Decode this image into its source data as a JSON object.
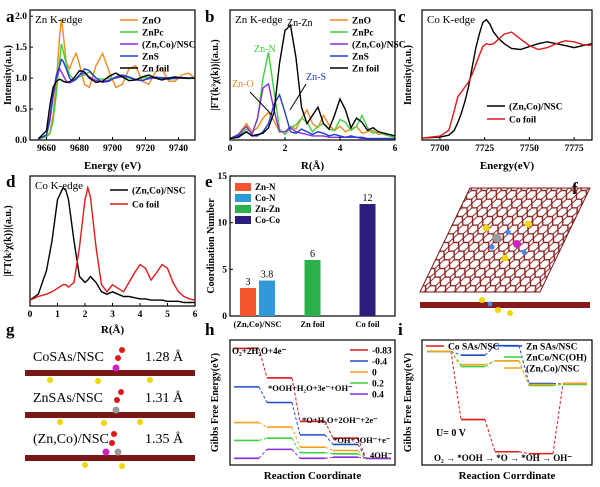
{
  "chart_data": [
    {
      "panel": "a",
      "type": "line",
      "title": "Zn K-edge",
      "xlabel": "Energy (eV)",
      "ylabel": "Intensity(a.u.)",
      "xlim": [
        9650,
        9750
      ],
      "ylim": [
        0,
        2.1
      ],
      "xticks": [
        "9660",
        "9680",
        "9700",
        "9720",
        "9740"
      ],
      "yticks": [
        "0.0",
        "0.5",
        "1.0",
        "1.5",
        "2.0"
      ],
      "x": [
        9655,
        9660,
        9662,
        9664,
        9666,
        9668,
        9669,
        9670,
        9672,
        9674,
        9676,
        9678,
        9680,
        9683,
        9686,
        9690,
        9694,
        9698,
        9702,
        9706,
        9710,
        9714,
        9718,
        9722,
        9726,
        9730,
        9734,
        9738,
        9742,
        9746,
        9750
      ],
      "series": [
        {
          "name": "ZnO",
          "color": "#f08a1e",
          "values": [
            0.02,
            0.05,
            0.12,
            0.4,
            0.95,
            1.7,
            1.95,
            1.75,
            1.25,
            1.15,
            1.3,
            1.4,
            1.22,
            0.9,
            0.85,
            1.2,
            1.4,
            1.1,
            0.85,
            0.9,
            1.15,
            1.2,
            0.95,
            0.9,
            1.1,
            1.15,
            0.95,
            0.95,
            1.05,
            1.08,
            1.0
          ]
        },
        {
          "name": "ZnPc",
          "color": "#3fd13f",
          "values": [
            0.02,
            0.05,
            0.1,
            0.3,
            0.75,
            1.3,
            1.55,
            1.45,
            1.22,
            1.05,
            1.0,
            1.0,
            1.02,
            1.05,
            1.1,
            1.0,
            0.98,
            1.0,
            1.0,
            1.02,
            1.0,
            0.98,
            1.0,
            1.02,
            1.0,
            0.98,
            1.0,
            1.02,
            1.0,
            0.99,
            1.0
          ]
        },
        {
          "name": "(Zn,Co)/NSC",
          "color": "#8a2be2",
          "values": [
            0.02,
            0.08,
            0.3,
            0.7,
            1.0,
            1.15,
            1.1,
            1.05,
            0.95,
            0.92,
            0.95,
            1.0,
            1.05,
            1.08,
            1.02,
            0.96,
            0.94,
            0.97,
            1.0,
            1.03,
            1.02,
            0.98,
            0.96,
            0.99,
            1.0,
            1.01,
            1.0,
            0.99,
            1.0,
            1.0,
            1.0
          ]
        },
        {
          "name": "ZnS",
          "color": "#1f3fc8",
          "values": [
            0.02,
            0.08,
            0.35,
            0.75,
            1.05,
            1.2,
            1.3,
            1.28,
            1.15,
            1.0,
            0.95,
            0.98,
            1.05,
            1.15,
            1.12,
            1.0,
            0.93,
            0.95,
            1.02,
            1.05,
            1.02,
            0.97,
            0.96,
            1.0,
            1.02,
            1.0,
            0.98,
            1.0,
            1.01,
            1.0,
            1.0
          ]
        },
        {
          "name": "Zn foil",
          "color": "#000000",
          "values": [
            0.02,
            0.15,
            0.55,
            0.85,
            0.95,
            0.98,
            0.97,
            0.95,
            0.93,
            0.94,
            0.98,
            1.05,
            1.12,
            1.1,
            1.0,
            0.93,
            0.95,
            1.03,
            1.08,
            1.02,
            0.96,
            0.97,
            1.02,
            1.05,
            1.0,
            0.97,
            1.0,
            1.02,
            1.0,
            1.0,
            1.0
          ]
        }
      ]
    },
    {
      "panel": "b",
      "type": "line",
      "title": "Zn K-edge",
      "xlabel": "R(Å)",
      "ylabel": "|FT(k³χ(k))|(a.u.)",
      "xlim": [
        0,
        6
      ],
      "ylim": [
        0,
        9.5
      ],
      "xticks": [
        "0",
        "2",
        "4",
        "6"
      ],
      "annotations": [
        "Zn-Zn",
        "Zn-N",
        "Zn-O",
        "Zn-S"
      ],
      "x": [
        0,
        0.3,
        0.6,
        0.8,
        1.0,
        1.2,
        1.4,
        1.6,
        1.8,
        2.0,
        2.2,
        2.4,
        2.6,
        2.8,
        3.0,
        3.2,
        3.4,
        3.6,
        3.8,
        4.0,
        4.2,
        4.4,
        4.6,
        4.8,
        5.0,
        5.2,
        5.4,
        5.6,
        5.8,
        6.0
      ],
      "series": [
        {
          "name": "ZnO",
          "color": "#f08a1e",
          "values": [
            0.1,
            0.4,
            1.2,
            0.6,
            0.9,
            1.6,
            2.0,
            1.4,
            0.6,
            0.6,
            1.0,
            0.8,
            1.6,
            2.2,
            1.2,
            0.9,
            1.8,
            1.1,
            0.7,
            1.0,
            0.6,
            0.8,
            1.0,
            0.5,
            0.6,
            0.7,
            0.4,
            0.5,
            0.3,
            0.2
          ]
        },
        {
          "name": "ZnPc",
          "color": "#3fd13f",
          "values": [
            0.1,
            0.3,
            0.8,
            0.5,
            1.5,
            4.5,
            6.4,
            3.6,
            0.8,
            0.4,
            0.9,
            1.1,
            1.6,
            1.3,
            0.6,
            1.0,
            1.2,
            0.8,
            0.7,
            1.5,
            1.3,
            0.7,
            1.0,
            1.8,
            0.9,
            0.5,
            0.6,
            0.4,
            0.3,
            0.2
          ]
        },
        {
          "name": "(Zn,Co)/NSC",
          "color": "#8a2be2",
          "values": [
            0.1,
            0.4,
            1.0,
            0.4,
            1.6,
            3.8,
            4.1,
            2.2,
            0.6,
            0.6,
            0.9,
            0.6,
            0.5,
            0.4,
            0.3,
            0.3,
            0.3,
            0.2,
            0.2,
            0.2,
            0.2,
            0.2,
            0.2,
            0.1,
            0.1,
            0.1,
            0.1,
            0.1,
            0.1,
            0.1
          ]
        },
        {
          "name": "ZnS",
          "color": "#1f3fc8",
          "values": [
            0.1,
            0.3,
            0.6,
            0.3,
            0.3,
            0.6,
            1.2,
            2.6,
            3.3,
            2.0,
            0.6,
            0.5,
            0.8,
            0.6,
            0.4,
            0.6,
            0.5,
            0.3,
            0.4,
            0.3,
            0.2,
            0.3,
            0.2,
            0.2,
            0.1,
            0.1,
            0.1,
            0.1,
            0.1,
            0.1
          ]
        },
        {
          "name": "Zn foil",
          "color": "#000000",
          "values": [
            0.1,
            0.2,
            0.6,
            0.3,
            0.4,
            0.5,
            0.9,
            2.0,
            5.6,
            8.0,
            8.4,
            6.0,
            2.4,
            1.2,
            1.8,
            2.4,
            1.2,
            0.8,
            1.8,
            3.0,
            2.2,
            0.9,
            1.6,
            1.3,
            0.7,
            0.9,
            0.6,
            0.5,
            0.4,
            0.3
          ]
        }
      ]
    },
    {
      "panel": "c",
      "type": "line",
      "title": "Co K-edge",
      "xlabel": "Energy(eV)",
      "ylabel": "Intensity(a.u.)",
      "xlim": [
        7690,
        7785
      ],
      "xticks": [
        "7700",
        "7725",
        "7750",
        "7775"
      ],
      "x": [
        7690,
        7700,
        7705,
        7708,
        7710,
        7712,
        7714,
        7716,
        7718,
        7720,
        7722,
        7724,
        7726,
        7728,
        7730,
        7733,
        7736,
        7740,
        7745,
        7750,
        7755,
        7760,
        7765,
        7770,
        7775,
        7780,
        7785
      ],
      "series": [
        {
          "name": "(Zn,Co)/NSC",
          "color": "#000000",
          "values": [
            0.02,
            0.03,
            0.05,
            0.1,
            0.18,
            0.28,
            0.4,
            0.55,
            0.75,
            0.95,
            1.1,
            1.22,
            1.25,
            1.2,
            1.12,
            1.05,
            1.0,
            0.95,
            0.94,
            0.97,
            1.0,
            1.02,
            1.0,
            0.98,
            0.96,
            0.98,
            1.0
          ]
        },
        {
          "name": "Co foil",
          "color": "#e0191b",
          "values": [
            0.02,
            0.04,
            0.1,
            0.3,
            0.45,
            0.5,
            0.55,
            0.6,
            0.68,
            0.78,
            0.88,
            0.97,
            1.0,
            0.99,
            1.0,
            1.05,
            1.1,
            1.12,
            1.05,
            0.98,
            0.94,
            0.96,
            1.0,
            1.03,
            1.02,
            0.99,
            0.98
          ]
        }
      ]
    },
    {
      "panel": "d",
      "type": "line",
      "title": "Co K-edge",
      "xlabel": "R(Å)",
      "ylabel": "|FT(k³χ(k))|(a.u.)",
      "xlim": [
        0,
        6
      ],
      "xticks": [
        "0",
        "1",
        "2",
        "3",
        "4",
        "5",
        "6"
      ],
      "x": [
        0,
        0.3,
        0.6,
        0.8,
        1.0,
        1.2,
        1.3,
        1.4,
        1.6,
        1.8,
        2.0,
        2.1,
        2.2,
        2.4,
        2.6,
        2.8,
        3.0,
        3.2,
        3.4,
        3.6,
        3.8,
        4.0,
        4.2,
        4.4,
        4.6,
        4.8,
        5.0,
        5.2,
        5.4,
        5.6,
        5.8,
        6.0
      ],
      "series": [
        {
          "name": "(Zn,Co)/NSC",
          "color": "#000000",
          "values": [
            0.05,
            0.1,
            0.3,
            0.55,
            0.9,
            1.0,
            0.98,
            0.9,
            0.55,
            0.25,
            0.2,
            0.22,
            0.25,
            0.2,
            0.12,
            0.1,
            0.12,
            0.1,
            0.08,
            0.08,
            0.07,
            0.06,
            0.06,
            0.05,
            0.05,
            0.05,
            0.04,
            0.04,
            0.04,
            0.03,
            0.03,
            0.03
          ]
        },
        {
          "name": "Co foil",
          "color": "#e0191b",
          "values": [
            0.05,
            0.08,
            0.1,
            0.12,
            0.15,
            0.18,
            0.18,
            0.16,
            0.2,
            0.5,
            0.9,
            1.0,
            0.92,
            0.5,
            0.18,
            0.12,
            0.18,
            0.15,
            0.12,
            0.2,
            0.28,
            0.35,
            0.32,
            0.22,
            0.28,
            0.35,
            0.32,
            0.2,
            0.12,
            0.08,
            0.06,
            0.05
          ]
        }
      ]
    },
    {
      "panel": "e",
      "type": "bar",
      "ylabel": "Coordination Number",
      "categories": [
        "(Zn,Co)/NSC",
        "Zn foil",
        "Co foil"
      ],
      "ylim": [
        0,
        15
      ],
      "yticks": [
        "0",
        "5",
        "10",
        "15"
      ],
      "legend": [
        "Zn-N",
        "Co-N",
        "Zn-Zn",
        "Co-Co"
      ],
      "bars": [
        {
          "category": "(Zn,Co)/NSC",
          "series": "Zn-N",
          "value": 3,
          "label": "3",
          "color": "#f2552b"
        },
        {
          "category": "(Zn,Co)/NSC",
          "series": "Co-N",
          "value": 3.8,
          "label": "3.8",
          "color": "#2f9ad8"
        },
        {
          "category": "Zn foil",
          "series": "Zn-Zn",
          "value": 6,
          "label": "6",
          "color": "#2bb14a"
        },
        {
          "category": "Co foil",
          "series": "Co-Co",
          "value": 12,
          "label": "12",
          "color": "#2c1e7a"
        }
      ]
    },
    {
      "panel": "h",
      "type": "line",
      "xlabel": "Reaction Coordinate",
      "ylabel": "Gibbs Free Energy(eV)",
      "annotations": [
        "O₂+2H₂O+4e⁻",
        "*OOH+H₂O+3e⁻+OH⁻",
        "*O+H₂O+2OH⁻+2e⁻",
        "*OH+3OH⁻+e⁻",
        "4OH⁻"
      ],
      "steps": [
        "O₂",
        "*OOH",
        "*O",
        "*OH",
        "OH⁻"
      ],
      "series": [
        {
          "name": "-0.83",
          "color": "#e0191b",
          "values": [
            4.92,
            3.6,
            1.65,
            0.9,
            0
          ]
        },
        {
          "name": "-0.4",
          "color": "#1f4fc8",
          "values": [
            3.2,
            2.5,
            1.05,
            0.62,
            0
          ]
        },
        {
          "name": "0",
          "color": "#f2a51a",
          "values": [
            1.6,
            1.4,
            0.5,
            0.35,
            0
          ]
        },
        {
          "name": "0.2",
          "color": "#3fd13f",
          "values": [
            0.8,
            0.9,
            0.25,
            0.2,
            0
          ]
        },
        {
          "name": "0.4",
          "color": "#8a2be2",
          "values": [
            0.0,
            0.4,
            0.0,
            0.05,
            0
          ]
        }
      ]
    },
    {
      "panel": "i",
      "type": "line",
      "xlabel": "Reaction Corrdinate",
      "ylabel": "Gibbs Free Energy(eV)",
      "annotation": "U= 0 V",
      "steps": [
        "O₂",
        "*OOH",
        "*O",
        "*OH",
        "OH⁻"
      ],
      "series": [
        {
          "name": "Co SAs/NSC",
          "color": "#e0191b",
          "values": [
            0,
            -3.6,
            -5.3,
            -5.4,
            -1.7
          ]
        },
        {
          "name": "Zn SAs/NSC",
          "color": "#1f4fc8",
          "values": [
            0,
            -0.2,
            0.3,
            -1.7,
            -1.7
          ]
        },
        {
          "name": "ZnCo/NC(OH)",
          "color": "#3fd13f",
          "values": [
            0,
            -0.8,
            -0.5,
            -1.8,
            -1.75
          ]
        },
        {
          "name": "(Zn,Co)/NSC",
          "color": "#f2a51a",
          "values": [
            0,
            -0.7,
            -0.5,
            -1.75,
            -1.7
          ]
        }
      ]
    }
  ],
  "panels": {
    "a": {
      "letter": "a"
    },
    "b": {
      "letter": "b"
    },
    "c": {
      "letter": "c"
    },
    "d": {
      "letter": "d"
    },
    "e": {
      "letter": "e"
    },
    "f": {
      "letter": "f"
    },
    "g": {
      "letter": "g",
      "labels": [
        "CoSAs/NSC",
        "ZnSAs/NSC",
        "(Zn,Co)/NSC"
      ],
      "distances": [
        "1.28 Å",
        "1.31 Å",
        "1.35 Å"
      ]
    },
    "h": {
      "letter": "h"
    },
    "i": {
      "letter": "i"
    }
  }
}
